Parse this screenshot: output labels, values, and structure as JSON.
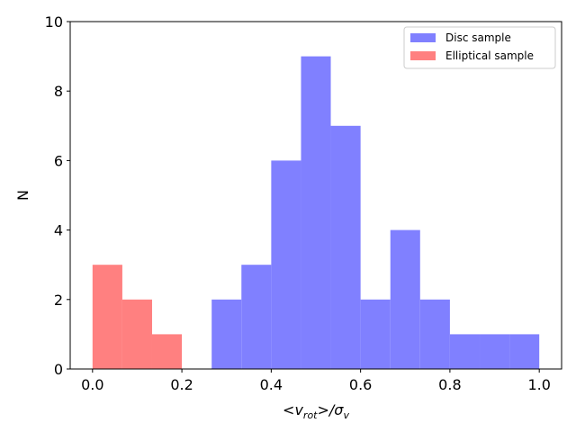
{
  "chart_data": {
    "type": "bar",
    "subtype": "histogram",
    "xlabel_parts": {
      "open": "<v",
      "sub1": "rot",
      "mid": ">/σ",
      "sub2": "v"
    },
    "ylabel": "N",
    "xlim": [
      -0.05,
      1.05
    ],
    "ylim": [
      0,
      10
    ],
    "xticks": [
      0.0,
      0.2,
      0.4,
      0.6,
      0.8,
      1.0
    ],
    "xtick_labels": [
      "0.0",
      "0.2",
      "0.4",
      "0.6",
      "0.8",
      "1.0"
    ],
    "yticks": [
      0,
      2,
      4,
      6,
      8,
      10
    ],
    "ytick_labels": [
      "0",
      "2",
      "4",
      "6",
      "8",
      "10"
    ],
    "grid": false,
    "legend_position": "top-right",
    "series": [
      {
        "name": "Disc sample",
        "color": "#8080ff",
        "bin_edges": [
          0.2667,
          0.3333,
          0.4,
          0.4667,
          0.5333,
          0.6,
          0.6667,
          0.7333,
          0.8,
          0.8667,
          0.9333,
          1.0
        ],
        "counts": [
          2,
          3,
          6,
          9,
          7,
          2,
          4,
          2,
          1,
          1,
          1
        ]
      },
      {
        "name": "Elliptical sample",
        "color": "#ff8080",
        "bin_edges": [
          0.0,
          0.0667,
          0.1333,
          0.2
        ],
        "counts": [
          3,
          2,
          1
        ]
      }
    ]
  }
}
